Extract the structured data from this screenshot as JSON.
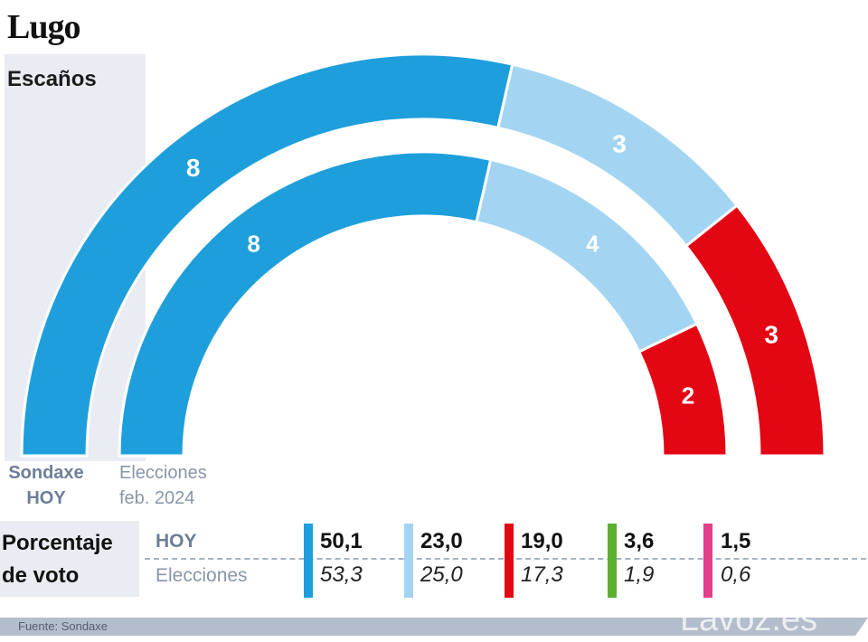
{
  "title": "Lugo",
  "seats_label": "Escaños",
  "caption_hoy": [
    "Sondaxe",
    "HOY"
  ],
  "caption_elecciones": [
    "Elecciones",
    "feb. 2024"
  ],
  "percent_label": [
    "Porcentaje",
    "de voto"
  ],
  "row_labels": {
    "hoy": "HOY",
    "elecciones": "Elecciones"
  },
  "source": "Fuente:  Sondaxe",
  "brand": "Lavoz.es",
  "colors": [
    "#1e9fdc",
    "#a3d5f2",
    "#e30613",
    "#5cb031",
    "#e2408b"
  ],
  "chart_data": [
    {
      "type": "pie",
      "name": "Escaños",
      "total_seats": 14,
      "series": [
        {
          "name": "Sondaxe HOY",
          "values": [
            8,
            3,
            3
          ]
        },
        {
          "name": "Elecciones feb. 2024",
          "values": [
            8,
            4,
            2
          ]
        }
      ]
    },
    {
      "type": "table",
      "name": "Porcentaje de voto",
      "rows": [
        "HOY",
        "Elecciones"
      ],
      "hoy": [
        "50,1",
        "23,0",
        "19,0",
        "3,6",
        "1,5"
      ],
      "elecciones": [
        "53,3",
        "25,0",
        "17,3",
        "1,9",
        "0,6"
      ]
    }
  ]
}
